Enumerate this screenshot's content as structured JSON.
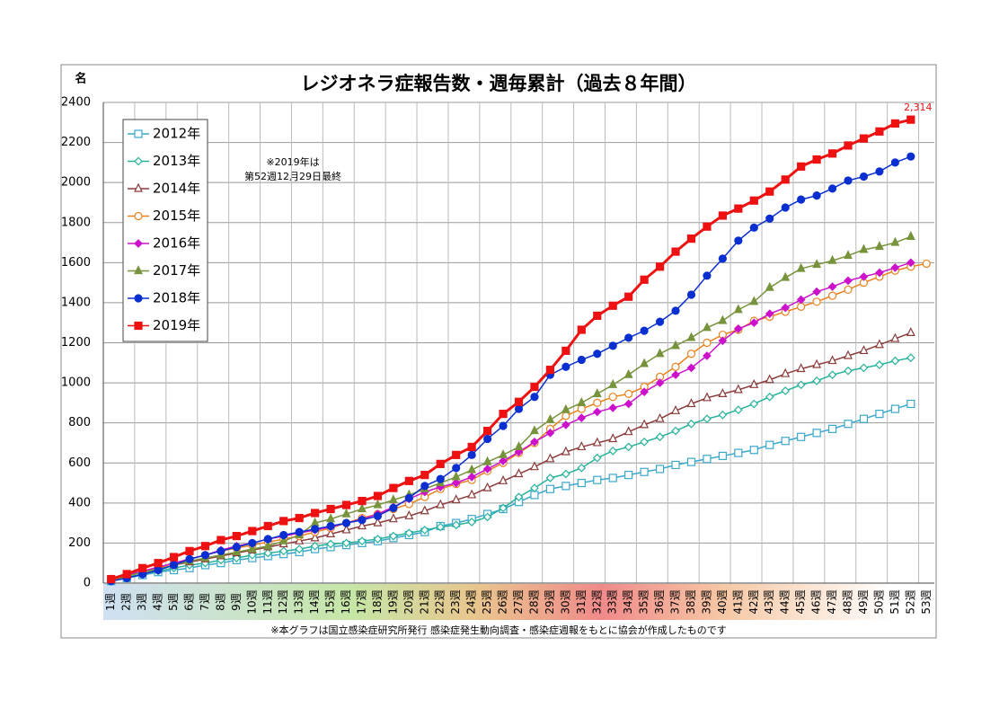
{
  "chart_data": {
    "type": "line",
    "title": "レジオネラ症報告数・週毎累計（過去８年間）",
    "y_label": "名",
    "annotation": [
      "※2019年は",
      "第52週12月29日最終"
    ],
    "footer": "※本グラフは国立感染症研究所発行 感染症発生動向調査・感染症週報をもとに協会が作成したものです",
    "categories": [
      "1週",
      "2週",
      "3週",
      "4週",
      "5週",
      "6週",
      "7週",
      "8週",
      "9週",
      "10週",
      "11週",
      "12週",
      "13週",
      "14週",
      "15週",
      "16週",
      "17週",
      "18週",
      "19週",
      "20週",
      "21週",
      "22週",
      "23週",
      "24週",
      "25週",
      "26週",
      "27週",
      "28週",
      "29週",
      "30週",
      "31週",
      "32週",
      "33週",
      "34週",
      "35週",
      "36週",
      "37週",
      "38週",
      "39週",
      "40週",
      "41週",
      "42週",
      "43週",
      "44週",
      "45週",
      "46週",
      "47週",
      "48週",
      "49週",
      "50週",
      "51週",
      "52週",
      "53週"
    ],
    "ylim": [
      0,
      2400
    ],
    "yticks": [
      0,
      200,
      400,
      600,
      800,
      1000,
      1200,
      1400,
      1600,
      1800,
      2000,
      2200,
      2400
    ],
    "grid": true,
    "legend": "upper left",
    "series": [
      {
        "name": "2012年",
        "color": "#3aa8cc",
        "marker": "square-open",
        "values": [
          10,
          25,
          40,
          55,
          65,
          75,
          90,
          100,
          115,
          125,
          135,
          145,
          155,
          170,
          180,
          190,
          200,
          210,
          225,
          240,
          255,
          285,
          300,
          320,
          345,
          370,
          405,
          440,
          470,
          485,
          500,
          515,
          525,
          540,
          555,
          570,
          590,
          605,
          620,
          635,
          650,
          665,
          690,
          710,
          730,
          750,
          770,
          795,
          820,
          845,
          870,
          895,
          null
        ]
      },
      {
        "name": "2013年",
        "color": "#26b29a",
        "marker": "diamond-open",
        "values": [
          10,
          30,
          45,
          60,
          75,
          90,
          100,
          115,
          125,
          140,
          150,
          160,
          170,
          185,
          195,
          200,
          210,
          220,
          235,
          250,
          265,
          280,
          290,
          305,
          330,
          375,
          430,
          475,
          525,
          545,
          575,
          625,
          660,
          680,
          705,
          730,
          760,
          795,
          820,
          840,
          865,
          895,
          930,
          960,
          990,
          1010,
          1040,
          1060,
          1075,
          1090,
          1110,
          1125,
          null
        ]
      },
      {
        "name": "2014年",
        "color": "#8c3b3b",
        "marker": "triangle-open",
        "values": [
          15,
          35,
          55,
          70,
          90,
          105,
          120,
          135,
          150,
          165,
          180,
          195,
          210,
          225,
          245,
          265,
          285,
          300,
          320,
          335,
          360,
          390,
          415,
          440,
          475,
          510,
          545,
          580,
          620,
          655,
          680,
          700,
          720,
          755,
          790,
          820,
          860,
          895,
          925,
          945,
          965,
          990,
          1015,
          1045,
          1070,
          1090,
          1110,
          1135,
          1160,
          1190,
          1220,
          1250,
          null
        ]
      },
      {
        "name": "2015年",
        "color": "#e8821e",
        "marker": "circle-open",
        "values": [
          15,
          35,
          55,
          75,
          100,
          120,
          140,
          160,
          175,
          190,
          205,
          220,
          235,
          255,
          275,
          300,
          325,
          345,
          370,
          395,
          430,
          470,
          495,
          515,
          560,
          600,
          650,
          700,
          770,
          835,
          870,
          900,
          930,
          945,
          980,
          1030,
          1080,
          1145,
          1200,
          1240,
          1265,
          1310,
          1330,
          1355,
          1380,
          1405,
          1435,
          1465,
          1500,
          1530,
          1560,
          1580,
          1595
        ]
      },
      {
        "name": "2016年",
        "color": "#cc11cc",
        "marker": "diamond",
        "values": [
          15,
          40,
          60,
          80,
          100,
          120,
          140,
          165,
          185,
          200,
          220,
          235,
          250,
          265,
          280,
          300,
          320,
          345,
          380,
          420,
          455,
          480,
          500,
          530,
          570,
          610,
          655,
          705,
          750,
          790,
          825,
          855,
          875,
          895,
          955,
          1000,
          1040,
          1075,
          1135,
          1210,
          1270,
          1300,
          1345,
          1375,
          1415,
          1455,
          1480,
          1510,
          1530,
          1550,
          1575,
          1600,
          null
        ]
      },
      {
        "name": "2017年",
        "color": "#77933c",
        "marker": "triangle",
        "values": [
          15,
          35,
          55,
          70,
          90,
          110,
          125,
          140,
          155,
          170,
          185,
          210,
          240,
          300,
          320,
          345,
          370,
          390,
          415,
          440,
          470,
          500,
          530,
          565,
          605,
          640,
          680,
          760,
          815,
          865,
          900,
          945,
          990,
          1040,
          1095,
          1145,
          1185,
          1225,
          1275,
          1310,
          1365,
          1405,
          1475,
          1525,
          1570,
          1590,
          1610,
          1635,
          1665,
          1680,
          1700,
          1730,
          null
        ]
      },
      {
        "name": "2018年",
        "color": "#0a2fd0",
        "marker": "circle",
        "values": [
          10,
          25,
          45,
          65,
          90,
          120,
          140,
          160,
          180,
          200,
          220,
          240,
          255,
          270,
          285,
          300,
          315,
          335,
          375,
          425,
          485,
          520,
          575,
          640,
          720,
          785,
          870,
          930,
          1040,
          1080,
          1115,
          1145,
          1185,
          1225,
          1260,
          1305,
          1360,
          1440,
          1535,
          1620,
          1710,
          1775,
          1820,
          1875,
          1915,
          1935,
          1970,
          2010,
          2030,
          2055,
          2100,
          2130,
          null
        ]
      },
      {
        "name": "2019年",
        "color": "#ee1111",
        "marker": "square",
        "values": [
          20,
          45,
          75,
          100,
          130,
          160,
          185,
          215,
          235,
          260,
          285,
          310,
          325,
          350,
          370,
          390,
          410,
          435,
          475,
          510,
          540,
          595,
          640,
          680,
          760,
          845,
          905,
          980,
          1065,
          1160,
          1265,
          1335,
          1385,
          1430,
          1515,
          1580,
          1655,
          1720,
          1780,
          1835,
          1870,
          1910,
          1955,
          2015,
          2080,
          2115,
          2145,
          2185,
          2220,
          2255,
          2295,
          2314,
          null
        ],
        "value_labels": [
          null,
          null,
          null,
          null,
          null,
          null,
          null,
          null,
          null,
          null,
          null,
          null,
          null,
          null,
          null,
          null,
          null,
          null,
          null,
          null,
          null,
          null,
          null,
          null,
          null,
          null,
          null,
          null,
          null,
          null,
          null,
          null,
          null,
          null,
          null,
          null,
          null,
          null,
          null,
          null,
          null,
          null,
          null,
          null,
          null,
          null,
          null,
          null,
          null,
          null,
          null,
          "2,314",
          null
        ]
      }
    ]
  }
}
